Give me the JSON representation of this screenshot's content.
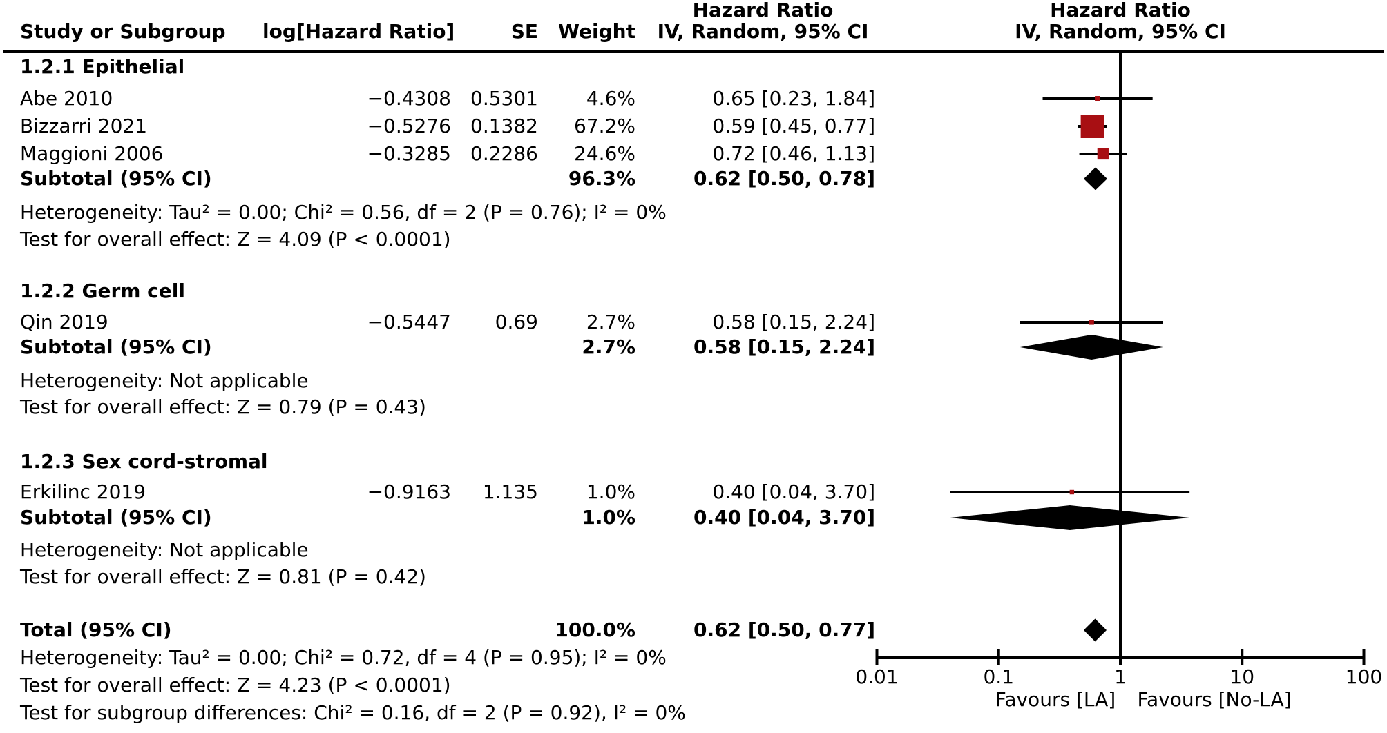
{
  "figure": {
    "table_effect_title": "Hazard Ratio",
    "plot_effect_title": "Hazard Ratio",
    "columns": {
      "study": "Study or Subgroup",
      "log_hr": "log[Hazard Ratio]",
      "se": "SE",
      "weight": "Weight",
      "ci": "IV, Random, 95% CI",
      "plot_ci": "IV, Random, 95% CI"
    }
  },
  "chart_data": {
    "type": "forest",
    "effect_measure": "Hazard Ratio",
    "model": "IV, Random, 95% CI",
    "xscale": "log",
    "xlim": [
      0.01,
      100
    ],
    "axis_ticks": [
      0.01,
      0.1,
      1,
      10,
      100
    ],
    "axis_tick_labels": [
      "0.01",
      "0.1",
      "1",
      "10",
      "100"
    ],
    "favours_left": "Favours [LA]",
    "favours_right": "Favours [No-LA]",
    "marker_color": "#a80f13",
    "diamond_color": "#000000",
    "groups": [
      {
        "label": "1.2.1 Epithelial",
        "studies": [
          {
            "name": "Abe 2010",
            "log_hr": "−0.4308",
            "se": "0.5301",
            "weight_label": "4.6%",
            "weight": 4.6,
            "ci_label": "0.65 [0.23, 1.84]",
            "hr": 0.65,
            "ci_low": 0.23,
            "ci_high": 1.84
          },
          {
            "name": "Bizzarri 2021",
            "log_hr": "−0.5276",
            "se": "0.1382",
            "weight_label": "67.2%",
            "weight": 67.2,
            "ci_label": "0.59 [0.45, 0.77]",
            "hr": 0.59,
            "ci_low": 0.45,
            "ci_high": 0.77
          },
          {
            "name": "Maggioni 2006",
            "log_hr": "−0.3285",
            "se": "0.2286",
            "weight_label": "24.6%",
            "weight": 24.6,
            "ci_label": "0.72 [0.46, 1.13]",
            "hr": 0.72,
            "ci_low": 0.46,
            "ci_high": 1.13
          }
        ],
        "subtotal": {
          "label": "Subtotal (95% CI)",
          "weight_label": "96.3%",
          "ci_label": "0.62 [0.50, 0.78]",
          "hr": 0.62,
          "ci_low": 0.5,
          "ci_high": 0.78
        },
        "heterogeneity": "Heterogeneity: Tau² = 0.00; Chi² = 0.56, df = 2 (P = 0.76); I² = 0%",
        "overall_effect": "Test for overall effect: Z = 4.09 (P < 0.0001)"
      },
      {
        "label": "1.2.2 Germ cell",
        "studies": [
          {
            "name": "Qin 2019",
            "log_hr": "−0.5447",
            "se": "0.69",
            "weight_label": "2.7%",
            "weight": 2.7,
            "ci_label": "0.58 [0.15, 2.24]",
            "hr": 0.58,
            "ci_low": 0.15,
            "ci_high": 2.24
          }
        ],
        "subtotal": {
          "label": "Subtotal (95% CI)",
          "weight_label": "2.7%",
          "ci_label": "0.58 [0.15, 2.24]",
          "hr": 0.58,
          "ci_low": 0.15,
          "ci_high": 2.24
        },
        "heterogeneity": "Heterogeneity: Not applicable",
        "overall_effect": "Test for overall effect: Z = 0.79 (P = 0.43)"
      },
      {
        "label": "1.2.3 Sex cord-stromal",
        "studies": [
          {
            "name": "Erkilinc 2019",
            "log_hr": "−0.9163",
            "se": "1.135",
            "weight_label": "1.0%",
            "weight": 1.0,
            "ci_label": "0.40 [0.04, 3.70]",
            "hr": 0.4,
            "ci_low": 0.04,
            "ci_high": 3.7
          }
        ],
        "subtotal": {
          "label": "Subtotal (95% CI)",
          "weight_label": "1.0%",
          "ci_label": "0.40 [0.04, 3.70]",
          "hr": 0.4,
          "ci_low": 0.04,
          "ci_high": 3.7
        },
        "heterogeneity": "Heterogeneity: Not applicable",
        "overall_effect": "Test for overall effect: Z = 0.81 (P = 0.42)"
      }
    ],
    "total": {
      "label": "Total (95% CI)",
      "weight_label": "100.0%",
      "ci_label": "0.62 [0.50, 0.77]",
      "hr": 0.62,
      "ci_low": 0.5,
      "ci_high": 0.77
    },
    "total_heterogeneity": "Heterogeneity: Tau² = 0.00; Chi² = 0.72, df = 4 (P = 0.95); I² = 0%",
    "total_overall_effect": "Test for overall effect: Z = 4.23 (P < 0.0001)",
    "subgroup_differences": "Test for subgroup differences: Chi² = 0.16, df = 2 (P = 0.92), I² = 0%"
  }
}
